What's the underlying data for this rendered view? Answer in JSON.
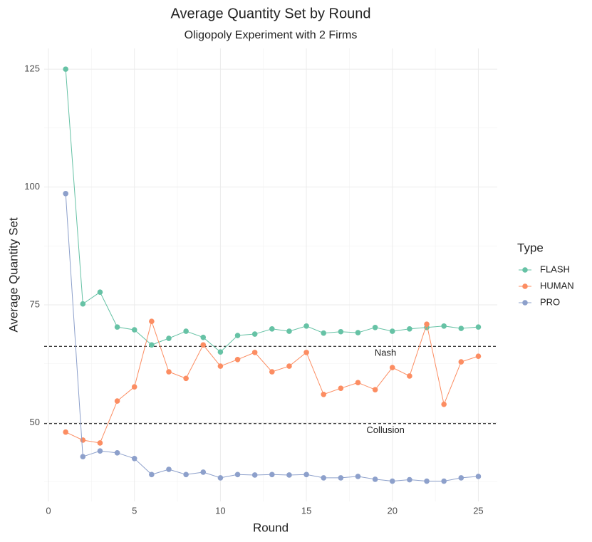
{
  "chart_data": {
    "type": "line",
    "title": "Average Quantity Set by Round",
    "subtitle": "Oligopoly Experiment with 2 Firms",
    "x_label": "Round",
    "y_label": "Average Quantity Set",
    "legend_title": "Type",
    "legend_position": "right",
    "x": [
      1,
      2,
      3,
      4,
      5,
      6,
      7,
      8,
      9,
      10,
      11,
      12,
      13,
      14,
      15,
      16,
      17,
      18,
      19,
      20,
      21,
      22,
      23,
      24,
      25
    ],
    "series": [
      {
        "name": "FLASH",
        "color": "#66c2a5",
        "values": [
          125,
          75.2,
          77.7,
          70.3,
          69.7,
          66.5,
          67.9,
          69.4,
          68.1,
          65.0,
          68.5,
          68.8,
          69.9,
          69.4,
          70.5,
          69.0,
          69.3,
          69.1,
          70.2,
          69.4,
          69.9,
          70.2,
          70.5,
          70.0,
          70.3
        ]
      },
      {
        "name": "HUMAN",
        "color": "#fc8d62",
        "values": [
          48.0,
          46.3,
          45.7,
          54.6,
          57.6,
          71.5,
          60.8,
          59.4,
          66.5,
          62.0,
          63.4,
          64.9,
          60.8,
          62.0,
          64.9,
          56.0,
          57.3,
          58.5,
          57.0,
          61.7,
          59.9,
          70.9,
          53.9,
          62.9,
          64.1
        ]
      },
      {
        "name": "PRO",
        "color": "#8da0cb",
        "values": [
          98.6,
          42.8,
          44.0,
          43.6,
          42.4,
          39.0,
          40.1,
          39.0,
          39.5,
          38.3,
          39.0,
          38.9,
          39.0,
          38.9,
          39.0,
          38.3,
          38.3,
          38.6,
          38.0,
          37.6,
          37.9,
          37.6,
          37.6,
          38.3,
          38.6
        ]
      }
    ],
    "hlines": [
      {
        "value": 66.2,
        "label": "Nash"
      },
      {
        "value": 49.8,
        "label": "Collusion"
      }
    ],
    "xlim": [
      -0.25,
      26.1
    ],
    "ylim": [
      33.3,
      129.4
    ],
    "xticks": [
      0,
      5,
      10,
      15,
      20,
      25
    ],
    "yticks": [
      50,
      75,
      100,
      125
    ],
    "grid": true,
    "minor_grid": true
  }
}
